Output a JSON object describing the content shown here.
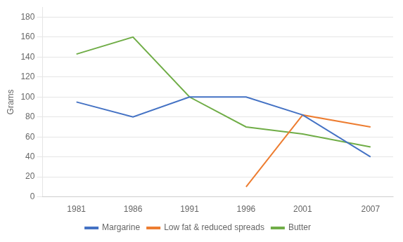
{
  "chart_data": {
    "type": "line",
    "x": [
      1981,
      1986,
      1991,
      1996,
      2001,
      2007
    ],
    "series": [
      {
        "name": "Margarine",
        "color": "#4472C4",
        "values": [
          95,
          80,
          100,
          100,
          82,
          40
        ]
      },
      {
        "name": "Low fat & reduced spreads",
        "color": "#ED7D31",
        "values": [
          null,
          null,
          null,
          10,
          82,
          70
        ]
      },
      {
        "name": "Butter",
        "color": "#70AD47",
        "values": [
          143,
          160,
          100,
          70,
          63,
          50
        ]
      }
    ],
    "ylabel": "Grams",
    "ylim": [
      0,
      190
    ],
    "yticks": [
      0,
      20,
      40,
      60,
      80,
      100,
      120,
      140,
      160,
      180
    ],
    "xlim": [
      1978,
      2009
    ],
    "xticks": [
      1981,
      1986,
      1991,
      1996,
      2001,
      2007
    ],
    "grid": "y",
    "legend": "bottom"
  }
}
